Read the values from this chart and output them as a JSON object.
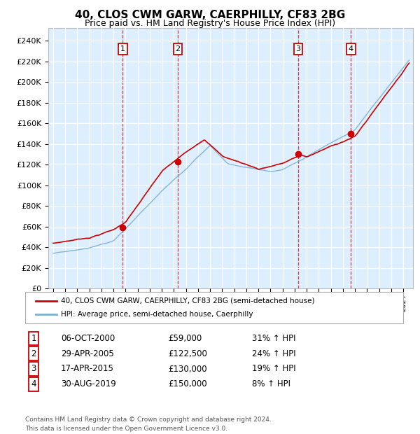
{
  "title": "40, CLOS CWM GARW, CAERPHILLY, CF83 2BG",
  "subtitle": "Price paid vs. HM Land Registry's House Price Index (HPI)",
  "ylabel_ticks": [
    0,
    20000,
    40000,
    60000,
    80000,
    100000,
    120000,
    140000,
    160000,
    180000,
    200000,
    220000,
    240000
  ],
  "ylim": [
    0,
    252000
  ],
  "xlim_start": 1994.6,
  "xlim_end": 2024.8,
  "transactions": [
    {
      "num": 1,
      "date_str": "06-OCT-2000",
      "year": 2000.77,
      "price": 59000,
      "pct": "31%",
      "dir": "↑"
    },
    {
      "num": 2,
      "date_str": "29-APR-2005",
      "year": 2005.32,
      "price": 122500,
      "pct": "24%",
      "dir": "↑"
    },
    {
      "num": 3,
      "date_str": "17-APR-2015",
      "year": 2015.29,
      "price": 130000,
      "pct": "19%",
      "dir": "↑"
    },
    {
      "num": 4,
      "date_str": "30-AUG-2019",
      "year": 2019.66,
      "price": 150000,
      "pct": "8%",
      "dir": "↑"
    }
  ],
  "legend_entries": [
    "40, CLOS CWM GARW, CAERPHILLY, CF83 2BG (semi-detached house)",
    "HPI: Average price, semi-detached house, Caerphilly"
  ],
  "table_rows": [
    [
      "1",
      "06-OCT-2000",
      "£59,000",
      "31% ↑ HPI"
    ],
    [
      "2",
      "29-APR-2005",
      "£122,500",
      "24% ↑ HPI"
    ],
    [
      "3",
      "17-APR-2015",
      "£130,000",
      "19% ↑ HPI"
    ],
    [
      "4",
      "30-AUG-2019",
      "£150,000",
      "8% ↑ HPI"
    ]
  ],
  "footer": "Contains HM Land Registry data © Crown copyright and database right 2024.\nThis data is licensed under the Open Government Licence v3.0.",
  "red_color": "#cc0000",
  "blue_color": "#7ab0d4",
  "bg_color": "#ddeeff",
  "grid_color": "#ffffff"
}
